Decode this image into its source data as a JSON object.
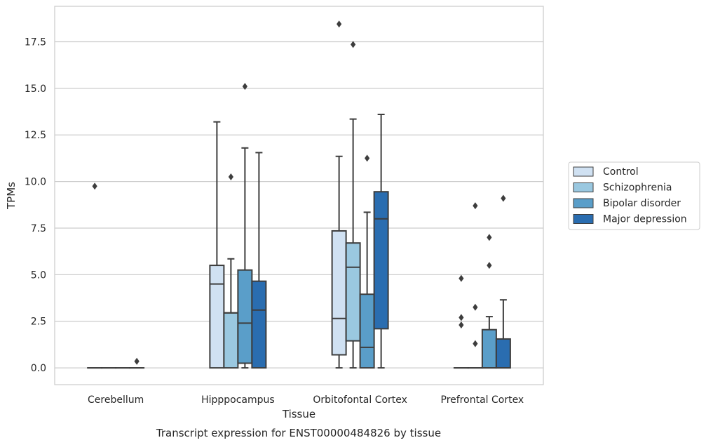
{
  "chart_data": {
    "type": "box",
    "title": "",
    "caption": "Transcript expression for ENST00000484826 by tissue",
    "xlabel": "Tissue",
    "ylabel": "TPMs",
    "ylim": [
      -0.9,
      19.4
    ],
    "yticks": [
      "0.0",
      "2.5",
      "5.0",
      "7.5",
      "10.0",
      "12.5",
      "15.0",
      "17.5"
    ],
    "grid": true,
    "legend_position": "right",
    "categories": [
      "Cerebellum",
      "Hipppocampus",
      "Orbitofontal Cortex",
      "Prefrontal Cortex"
    ],
    "series": [
      {
        "name": "Control",
        "color": "#d0e1f2",
        "boxes": [
          {
            "whislo": 0,
            "q1": 0,
            "med": 0,
            "q3": 0,
            "whishi": 0,
            "fliers": [
              9.75
            ]
          },
          {
            "whislo": 0,
            "q1": 0,
            "med": 4.5,
            "q3": 5.5,
            "whishi": 13.2,
            "fliers": []
          },
          {
            "whislo": 0,
            "q1": 0.7,
            "med": 2.65,
            "q3": 7.35,
            "whishi": 11.35,
            "fliers": [
              18.45
            ]
          },
          {
            "whislo": 0,
            "q1": 0,
            "med": 0,
            "q3": 0,
            "whishi": 0,
            "fliers": [
              4.8,
              2.7,
              2.3
            ]
          }
        ]
      },
      {
        "name": "Schizophrenia",
        "color": "#9ac8e0",
        "boxes": [
          {
            "whislo": 0,
            "q1": 0,
            "med": 0,
            "q3": 0,
            "whishi": 0,
            "fliers": []
          },
          {
            "whislo": 0,
            "q1": 0,
            "med": 2.95,
            "q3": 2.95,
            "whishi": 5.85,
            "fliers": [
              10.25
            ]
          },
          {
            "whislo": 0,
            "q1": 1.45,
            "med": 5.4,
            "q3": 6.7,
            "whishi": 13.35,
            "fliers": [
              17.35
            ]
          },
          {
            "whislo": 0,
            "q1": 0,
            "med": 0,
            "q3": 0,
            "whishi": 0,
            "fliers": [
              8.7,
              3.25,
              1.3
            ]
          }
        ]
      },
      {
        "name": "Bipolar disorder",
        "color": "#5a9ec9",
        "boxes": [
          {
            "whislo": 0,
            "q1": 0,
            "med": 0,
            "q3": 0,
            "whishi": 0,
            "fliers": []
          },
          {
            "whislo": 0,
            "q1": 0.25,
            "med": 2.4,
            "q3": 5.25,
            "whishi": 11.8,
            "fliers": [
              15.1
            ]
          },
          {
            "whislo": 0,
            "q1": 0,
            "med": 1.1,
            "q3": 3.95,
            "whishi": 8.35,
            "fliers": [
              11.25
            ]
          },
          {
            "whislo": 0,
            "q1": 0,
            "med": 0,
            "q3": 2.05,
            "whishi": 2.75,
            "fliers": [
              7.0,
              5.5
            ]
          }
        ]
      },
      {
        "name": "Major depression",
        "color": "#2a6db0",
        "boxes": [
          {
            "whislo": 0,
            "q1": 0,
            "med": 0,
            "q3": 0,
            "whishi": 0,
            "fliers": [
              0.35
            ]
          },
          {
            "whislo": 0,
            "q1": 0,
            "med": 3.1,
            "q3": 4.65,
            "whishi": 11.55,
            "fliers": []
          },
          {
            "whislo": 0,
            "q1": 2.1,
            "med": 8.0,
            "q3": 9.45,
            "whishi": 13.6,
            "fliers": []
          },
          {
            "whislo": 0,
            "q1": 0,
            "med": 0,
            "q3": 1.55,
            "whishi": 3.65,
            "fliers": [
              9.1
            ]
          }
        ]
      }
    ]
  }
}
